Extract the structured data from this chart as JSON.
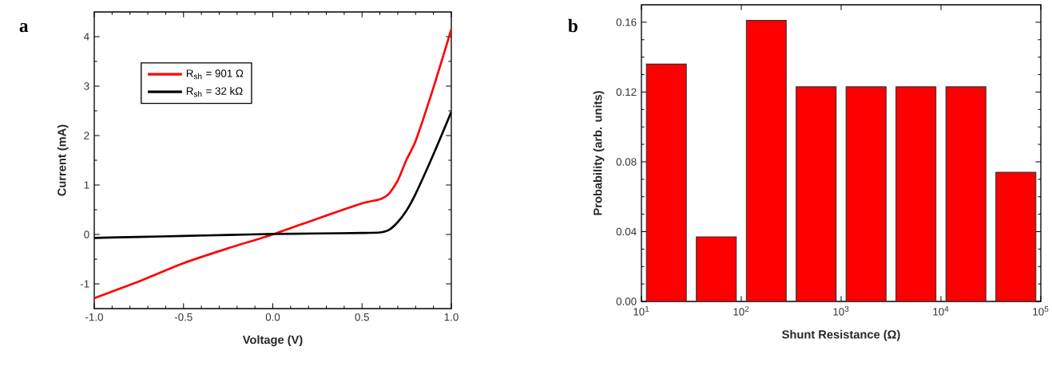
{
  "chart_data": [
    {
      "type": "line",
      "title": "a",
      "xlabel": "Voltage (V)",
      "ylabel": "Current (mA)",
      "x": [
        -1.0,
        -0.75,
        -0.5,
        -0.25,
        0.0,
        0.25,
        0.5,
        0.6,
        0.65,
        0.7,
        0.75,
        0.8,
        0.9,
        1.0
      ],
      "series": [
        {
          "name": "R$_{sh}$ = 901 Ω",
          "color": "#ff0000",
          "values": [
            -1.29,
            -0.95,
            -0.58,
            -0.28,
            0.0,
            0.32,
            0.63,
            0.71,
            0.82,
            1.09,
            1.52,
            1.89,
            2.97,
            4.15
          ]
        },
        {
          "name": "R$_{sh}$ = 32 kΩ",
          "color": "#000000",
          "values": [
            -0.07,
            -0.05,
            -0.03,
            -0.01,
            0.01,
            0.02,
            0.03,
            0.04,
            0.09,
            0.25,
            0.49,
            0.82,
            1.62,
            2.48
          ]
        }
      ],
      "xlim": [
        -1.0,
        1.0
      ],
      "xticks": [
        {
          "value": -1.0,
          "label": "-1.0"
        },
        {
          "value": -0.5,
          "label": "-0.5"
        },
        {
          "value": 0.0,
          "label": "0.0"
        },
        {
          "value": 0.5,
          "label": "0.5"
        },
        {
          "value": 1.0,
          "label": "1.0"
        }
      ],
      "ylim": [
        -1.5,
        4.5
      ],
      "yticks": [
        -1,
        0,
        1,
        2,
        3,
        4
      ],
      "legend": "top left",
      "grid": false,
      "marker": "none",
      "line_style": "solid"
    },
    {
      "type": "histogram",
      "title": "b",
      "xlabel": "Shunt Resistance (Ω)",
      "ylabel": "Probability (arb. units)",
      "bins": [
        10,
        31.6,
        100,
        316,
        1000,
        3160,
        10000,
        31600,
        100000
      ],
      "values": [
        0.136,
        0.037,
        0.161,
        0.123,
        0.123,
        0.123,
        0.123,
        0.074
      ],
      "color": "#ff0000",
      "log": "x",
      "xlim": [
        10,
        100000
      ],
      "xticks": [
        {
          "value": 10,
          "label": "10$^{1}$"
        },
        {
          "value": 100,
          "label": "10$^{2}$"
        },
        {
          "value": 1000,
          "label": "10$^{3}$"
        },
        {
          "value": 10000,
          "label": "10$^{4}$"
        },
        {
          "value": 100000,
          "label": "10$^{5}$"
        }
      ],
      "ylim": [
        0,
        0.17
      ],
      "yticks": [
        {
          "value": 0,
          "label": "0.00"
        },
        {
          "value": 0.04,
          "label": "0.04"
        },
        {
          "value": 0.08,
          "label": "0.08"
        },
        {
          "value": 0.12,
          "label": "0.12"
        },
        {
          "value": 0.16,
          "label": "0.16"
        }
      ],
      "grid": false
    }
  ]
}
